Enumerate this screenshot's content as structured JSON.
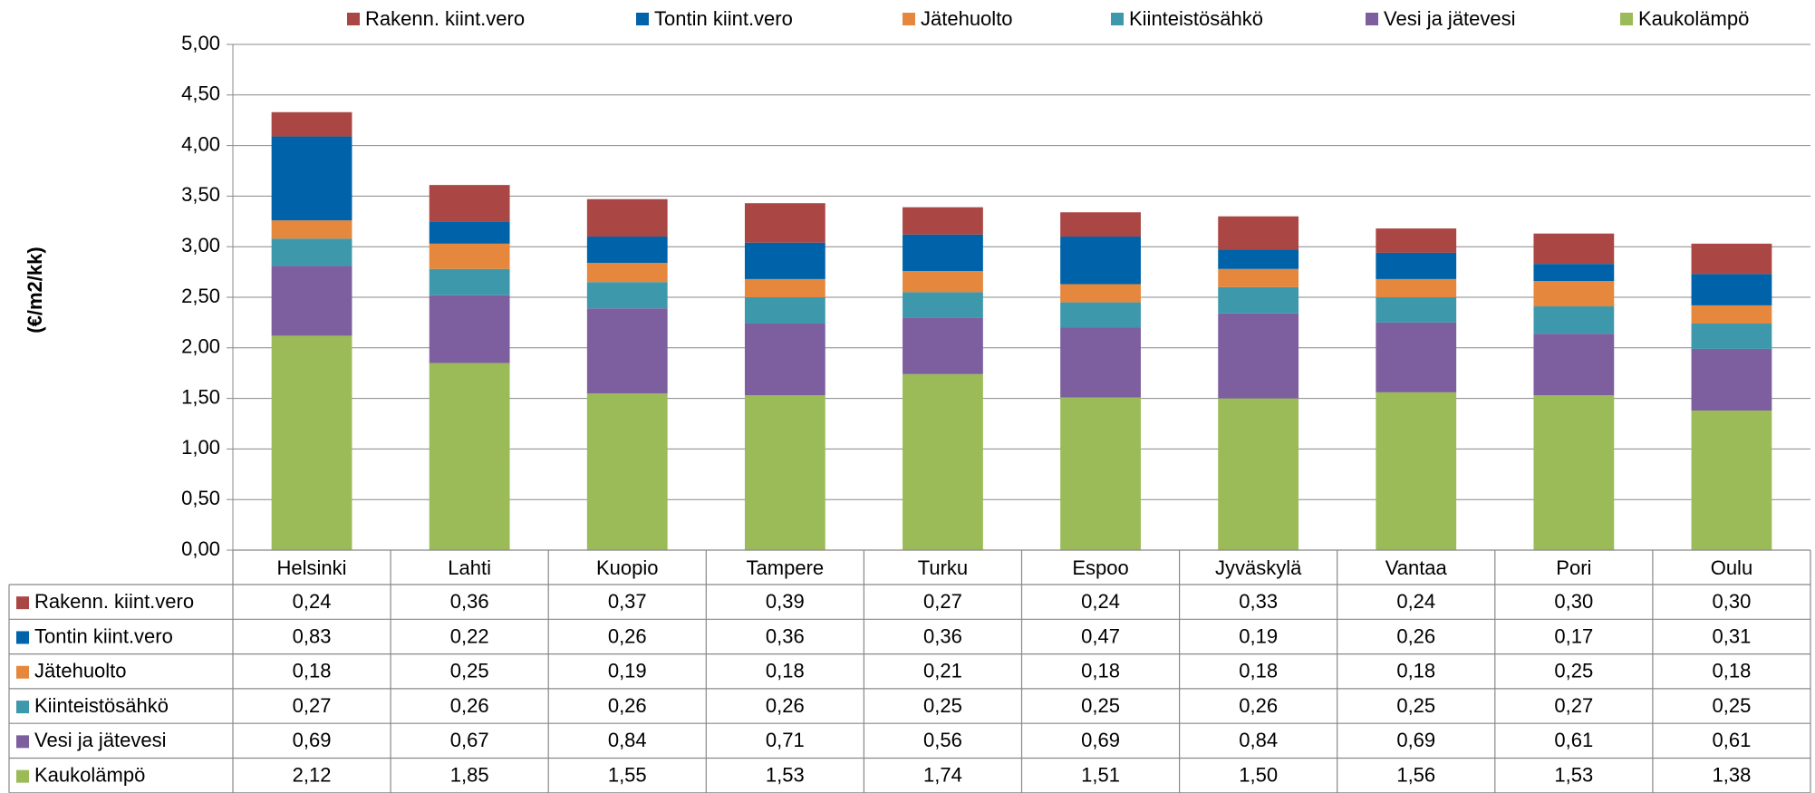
{
  "chart_data": {
    "type": "stacked_bar",
    "y_label": "(€/m2/kk)",
    "categories": [
      "Helsinki",
      "Lahti",
      "Kuopio",
      "Tampere",
      "Turku",
      "Espoo",
      "Jyväskylä",
      "Vantaa",
      "Pori",
      "Oulu"
    ],
    "series": [
      {
        "name": "Rakenn. kiint.vero",
        "color": "#aa4643",
        "values": [
          0.24,
          0.36,
          0.37,
          0.39,
          0.27,
          0.24,
          0.33,
          0.24,
          0.3,
          0.3
        ],
        "value_labels": [
          "0,24",
          "0,36",
          "0,37",
          "0,39",
          "0,27",
          "0,24",
          "0,33",
          "0,24",
          "0,30",
          "0,30"
        ]
      },
      {
        "name": "Tontin kiint.vero",
        "color": "#0062a8",
        "values": [
          0.83,
          0.22,
          0.26,
          0.36,
          0.36,
          0.47,
          0.19,
          0.26,
          0.17,
          0.31
        ],
        "value_labels": [
          "0,83",
          "0,22",
          "0,26",
          "0,36",
          "0,36",
          "0,47",
          "0,19",
          "0,26",
          "0,17",
          "0,31"
        ]
      },
      {
        "name": "Jätehuolto",
        "color": "#e5873c",
        "values": [
          0.18,
          0.25,
          0.19,
          0.18,
          0.21,
          0.18,
          0.18,
          0.18,
          0.25,
          0.18
        ],
        "value_labels": [
          "0,18",
          "0,25",
          "0,19",
          "0,18",
          "0,21",
          "0,18",
          "0,18",
          "0,18",
          "0,25",
          "0,18"
        ]
      },
      {
        "name": "Kiinteistösähkö",
        "color": "#3e98ab",
        "values": [
          0.27,
          0.26,
          0.26,
          0.26,
          0.25,
          0.25,
          0.26,
          0.25,
          0.27,
          0.25
        ],
        "value_labels": [
          "0,27",
          "0,26",
          "0,26",
          "0,26",
          "0,25",
          "0,25",
          "0,26",
          "0,25",
          "0,27",
          "0,25"
        ]
      },
      {
        "name": "Vesi ja jätevesi",
        "color": "#7d5fa0",
        "values": [
          0.69,
          0.67,
          0.84,
          0.71,
          0.56,
          0.69,
          0.84,
          0.69,
          0.61,
          0.61
        ],
        "value_labels": [
          "0,69",
          "0,67",
          "0,84",
          "0,71",
          "0,56",
          "0,69",
          "0,84",
          "0,69",
          "0,61",
          "0,61"
        ]
      },
      {
        "name": "Kaukolämpö",
        "color": "#9bbb59",
        "values": [
          2.12,
          1.85,
          1.55,
          1.53,
          1.74,
          1.51,
          1.5,
          1.56,
          1.53,
          1.38
        ],
        "value_labels": [
          "2,12",
          "1,85",
          "1,55",
          "1,53",
          "1,74",
          "1,51",
          "1,50",
          "1,56",
          "1,53",
          "1,38"
        ]
      }
    ],
    "ylim": [
      0,
      5
    ],
    "yticks": [
      {
        "value": 0,
        "label": "0,00"
      },
      {
        "value": 0.5,
        "label": "0,50"
      },
      {
        "value": 1,
        "label": "1,00"
      },
      {
        "value": 1.5,
        "label": "1,50"
      },
      {
        "value": 2,
        "label": "2,00"
      },
      {
        "value": 2.5,
        "label": "2,50"
      },
      {
        "value": 3,
        "label": "3,00"
      },
      {
        "value": 3.5,
        "label": "3,50"
      },
      {
        "value": 4,
        "label": "4,00"
      },
      {
        "value": 4.5,
        "label": "4,50"
      },
      {
        "value": 5,
        "label": "5,00"
      }
    ],
    "grid": true,
    "legend": "top"
  }
}
